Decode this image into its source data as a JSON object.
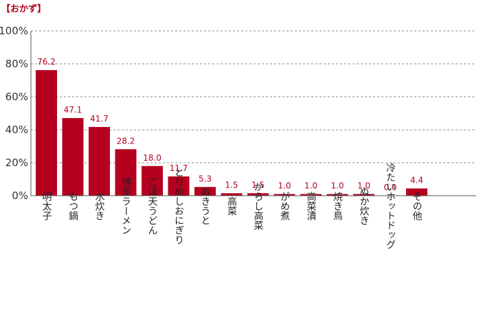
{
  "chart_data": {
    "type": "bar",
    "title": "【おかず】",
    "categories": [
      "明太子",
      "もつ鍋",
      "水炊き",
      "博多ラーメン",
      "ごぼ天うどん",
      "とりめしおにぎり",
      "おきうと",
      "高菜",
      "からし高菜",
      "がめ煮",
      "高菜漬",
      "焼き鳥",
      "ぬか炊き",
      "冷たいホットドッグ",
      "その他"
    ],
    "values": [
      76.2,
      47.1,
      41.7,
      28.2,
      18.0,
      11.7,
      5.3,
      1.5,
      1.5,
      1.0,
      1.0,
      1.0,
      1.0,
      0.0,
      4.4
    ],
    "value_labels": [
      "76.2",
      "47.1",
      "41.7",
      "28.2",
      "18.0",
      "11.7",
      "5.3",
      "1.5",
      "1.5",
      "1.0",
      "1.0",
      "1.0",
      "1.0",
      "0.0",
      "4.4"
    ],
    "ylim": [
      0,
      100
    ],
    "yticks": [
      "0%",
      "20%",
      "40%",
      "60%",
      "80%",
      "100%"
    ],
    "grid": true,
    "colors": {
      "bar": "#b5001f",
      "label": "#b5001f",
      "grid": "#888888",
      "axis": "#555555"
    }
  }
}
